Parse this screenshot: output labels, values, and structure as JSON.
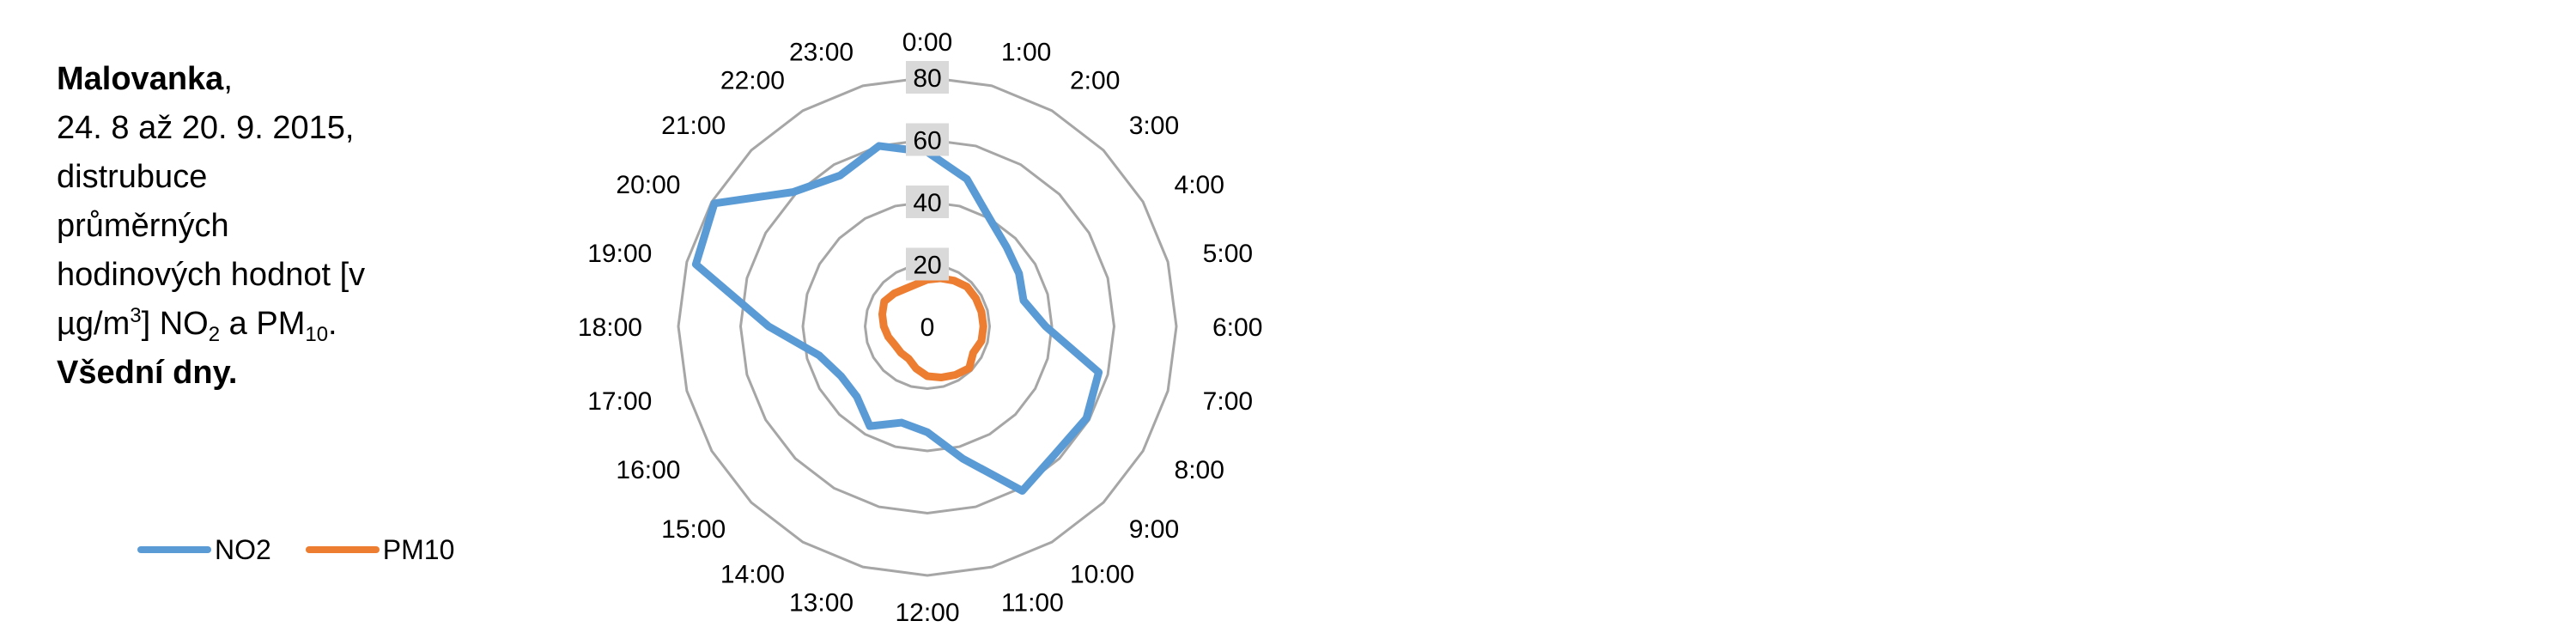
{
  "caption": {
    "location": "Malovanka",
    "comma": ",",
    "line2": "24. 8 až 20. 9. 2015,",
    "line3": "distrubuce",
    "line4": "průměrných",
    "line5": "hodinových hodnot [v",
    "line6a": "µg/m",
    "line6_sup": "3",
    "line6b": "] NO",
    "line6_sub": "2",
    "line6c": " a PM",
    "line6_sub2": "10",
    "line6d": ".",
    "line7": "Všední dny."
  },
  "colors": {
    "no2": "#5b9bd5",
    "pm10": "#ed7d31",
    "grid": "#a6a6a6",
    "tick_label_bg": "#d9d9d9"
  },
  "chart_data": {
    "type": "radar",
    "categories": [
      "1:00",
      "2:00",
      "3:00",
      "4:00",
      "5:00",
      "6:00",
      "7:00",
      "8:00",
      "9:00",
      "10:00",
      "11:00",
      "12:00",
      "13:00",
      "14:00",
      "15:00",
      "16:00",
      "17:00",
      "18:00",
      "19:00",
      "20:00",
      "21:00",
      "22:00",
      "23:00",
      "0:00"
    ],
    "radial_ticks": [
      0,
      20,
      40,
      60,
      80
    ],
    "rlim": [
      0,
      80
    ],
    "grid": true,
    "legend_position": "bottom-left",
    "series": [
      {
        "name": "NO2",
        "values": [
          49,
          40,
          36,
          34,
          32,
          38,
          57,
          59,
          58,
          61,
          44,
          34,
          32,
          37,
          32,
          32,
          36,
          51,
          77,
          79,
          61,
          56,
          60,
          56
        ]
      },
      {
        "name": "PM10",
        "values": [
          16,
          17,
          18,
          18,
          18,
          18,
          18,
          17,
          19,
          18,
          17,
          16,
          14,
          12,
          12,
          12,
          13,
          14,
          15,
          16,
          15,
          14,
          14,
          15
        ]
      }
    ]
  }
}
